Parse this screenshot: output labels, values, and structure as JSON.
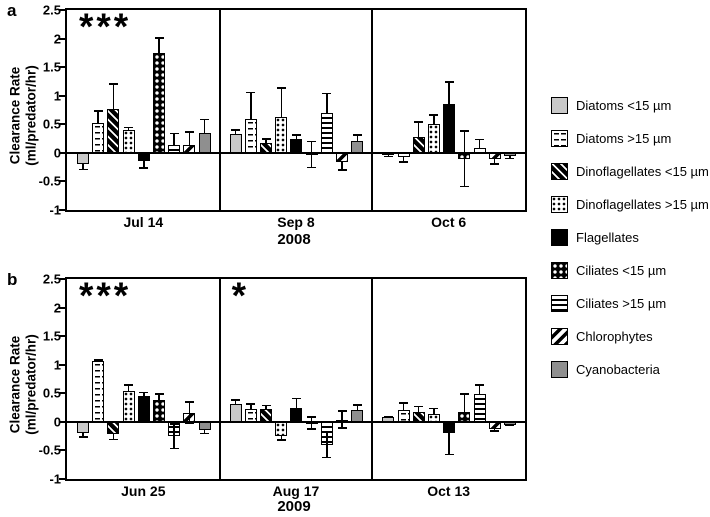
{
  "figure": {
    "panel_a_letter": "a",
    "panel_b_letter": "b",
    "ylabel_line1": "Clearance Rate",
    "ylabel_line2": "(ml/predator/hr)",
    "colors": {
      "light_gray": "#c9c9c9",
      "dark_gray": "#8f8f8f",
      "black": "#000000",
      "white": "#ffffff"
    }
  },
  "legend": {
    "items": [
      {
        "key": "diatoms-lt15",
        "label": "Diatoms <15 µm",
        "pattern": "solid light gray"
      },
      {
        "key": "diatoms-gt15",
        "label": "Diatoms >15 µm",
        "pattern": "white with black dashes"
      },
      {
        "key": "dinoflagellates-lt15",
        "label": "Dinoflagellates <15 µm",
        "pattern": "black with white diagonal stripes"
      },
      {
        "key": "dinoflagellates-gt15",
        "label": "Dinoflagellates >15 µm",
        "pattern": "white with small black dots"
      },
      {
        "key": "flagellates",
        "label": "Flagellates",
        "pattern": "solid black"
      },
      {
        "key": "ciliates-lt15",
        "label": "Ciliates <15 µm",
        "pattern": "black with white dots"
      },
      {
        "key": "ciliates-gt15",
        "label": "Ciliates >15 µm",
        "pattern": "white with black horizontal lines"
      },
      {
        "key": "chlorophytes",
        "label": "Chlorophytes",
        "pattern": "white with black diagonal stripes"
      },
      {
        "key": "cyanobacteria",
        "label": "Cyanobacteria",
        "pattern": "solid dark gray"
      }
    ]
  },
  "chart_data": [
    {
      "type": "bar",
      "panel": "a",
      "x_year": "2008",
      "ylabel": "Clearance Rate (ml/predator/hr)",
      "ylim": [
        -1,
        2.5
      ],
      "yticks": [
        "2.5",
        "2",
        "1.5",
        "1",
        "0.5",
        "0",
        "-0.5",
        "-1"
      ],
      "series_keys": [
        "diatoms-lt15",
        "diatoms-gt15",
        "dinoflagellates-lt15",
        "dinoflagellates-gt15",
        "flagellates",
        "ciliates-lt15",
        "ciliates-gt15",
        "chlorophytes",
        "cyanobacteria"
      ],
      "groups": [
        {
          "label": "Jul 14",
          "significance": "***",
          "values": [
            -0.2,
            0.52,
            0.77,
            0.4,
            -0.15,
            1.75,
            0.13,
            0.13,
            0.35
          ],
          "errors": [
            0.1,
            0.23,
            0.45,
            0.06,
            0.13,
            0.27,
            0.22,
            0.25,
            0.25
          ],
          "two_sided": [
            false,
            false,
            false,
            false,
            false,
            false,
            false,
            false,
            false
          ]
        },
        {
          "label": "Sep 8",
          "significance": "",
          "values": [
            0.33,
            0.6,
            0.18,
            0.63,
            0.25,
            -0.03,
            0.7,
            -0.16,
            0.2
          ],
          "errors": [
            0.08,
            0.47,
            0.08,
            0.52,
            0.08,
            0.24,
            0.35,
            0.15,
            0.13
          ],
          "two_sided": [
            false,
            false,
            false,
            false,
            false,
            true,
            false,
            false,
            false
          ]
        },
        {
          "label": "Oct 6",
          "significance": "",
          "values": [
            -0.03,
            -0.08,
            0.28,
            0.5,
            0.85,
            -0.1,
            0.08,
            -0.11,
            -0.06
          ],
          "errors": [
            0.05,
            0.09,
            0.27,
            0.18,
            0.4,
            0.5,
            0.17,
            0.1,
            0.05
          ],
          "two_sided": [
            false,
            false,
            false,
            false,
            false,
            true,
            false,
            false,
            false
          ]
        }
      ]
    },
    {
      "type": "bar",
      "panel": "b",
      "x_year": "2009",
      "ylabel": "Clearance Rate (ml/predator/hr)",
      "ylim": [
        -1,
        2.5
      ],
      "yticks": [
        "2.5",
        "2",
        "1.5",
        "1",
        "0.5",
        "0",
        "-0.5",
        "-1"
      ],
      "series_keys": [
        "diatoms-lt15",
        "diatoms-gt15",
        "dinoflagellates-lt15",
        "dinoflagellates-gt15",
        "flagellates",
        "ciliates-lt15",
        "ciliates-gt15",
        "chlorophytes",
        "cyanobacteria"
      ],
      "groups": [
        {
          "label": "Jun 25",
          "significance": "***",
          "values": [
            -0.2,
            1.07,
            -0.22,
            0.54,
            0.46,
            0.38,
            -0.25,
            0.16,
            -0.15
          ],
          "errors": [
            0.08,
            0.03,
            0.1,
            0.12,
            0.07,
            0.12,
            0.23,
            0.2,
            0.07
          ],
          "two_sided": [
            false,
            false,
            false,
            false,
            false,
            false,
            true,
            true,
            false
          ]
        },
        {
          "label": "Aug 17",
          "significance": "*",
          "values": [
            0.32,
            0.23,
            0.22,
            -0.25,
            0.25,
            -0.02,
            -0.4,
            0.04,
            0.21
          ],
          "errors": [
            0.08,
            0.1,
            0.08,
            0.08,
            0.17,
            0.12,
            0.24,
            0.16,
            0.1
          ],
          "two_sided": [
            false,
            false,
            false,
            false,
            false,
            true,
            true,
            true,
            false
          ]
        },
        {
          "label": "Oct 13",
          "significance": "",
          "values": [
            0.08,
            0.21,
            0.17,
            0.14,
            -0.2,
            0.17,
            0.48,
            -0.13,
            -0.05
          ],
          "errors": [
            0.03,
            0.13,
            0.11,
            0.11,
            0.38,
            0.33,
            0.18,
            0.04,
            0.03
          ],
          "two_sided": [
            false,
            false,
            false,
            false,
            false,
            false,
            false,
            false,
            false
          ]
        }
      ]
    }
  ]
}
